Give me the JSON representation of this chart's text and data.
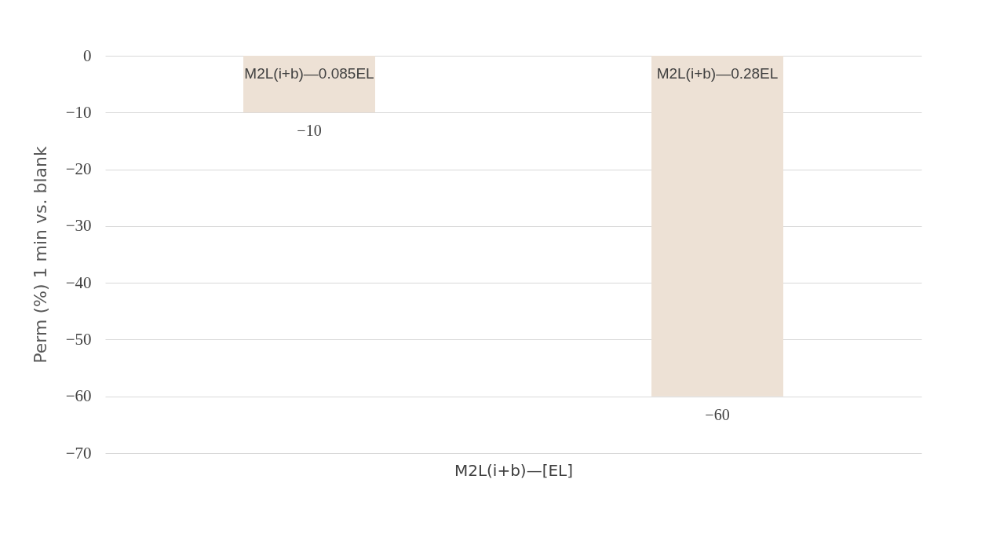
{
  "chart_data": {
    "type": "bar",
    "categories": [
      "M2L(i+b)—0.085EL",
      "M2L(i+b)—0.28EL"
    ],
    "values": [
      -10,
      -60
    ],
    "value_labels": [
      "−10",
      "−60"
    ],
    "color": "#ede1d5",
    "xlabel": "M2L(i+b)—[EL]",
    "ylabel": "Perm (%) 1 min vs. blank",
    "ylim": [
      -70,
      0
    ],
    "yticks": [
      {
        "value": 0,
        "label": "0"
      },
      {
        "value": -10,
        "label": "−10"
      },
      {
        "value": -20,
        "label": "−20"
      },
      {
        "value": -30,
        "label": "−30"
      },
      {
        "value": -40,
        "label": "−40"
      },
      {
        "value": -50,
        "label": "−50"
      },
      {
        "value": -60,
        "label": "−60"
      },
      {
        "value": -70,
        "label": "−70"
      }
    ],
    "grid": "y"
  }
}
